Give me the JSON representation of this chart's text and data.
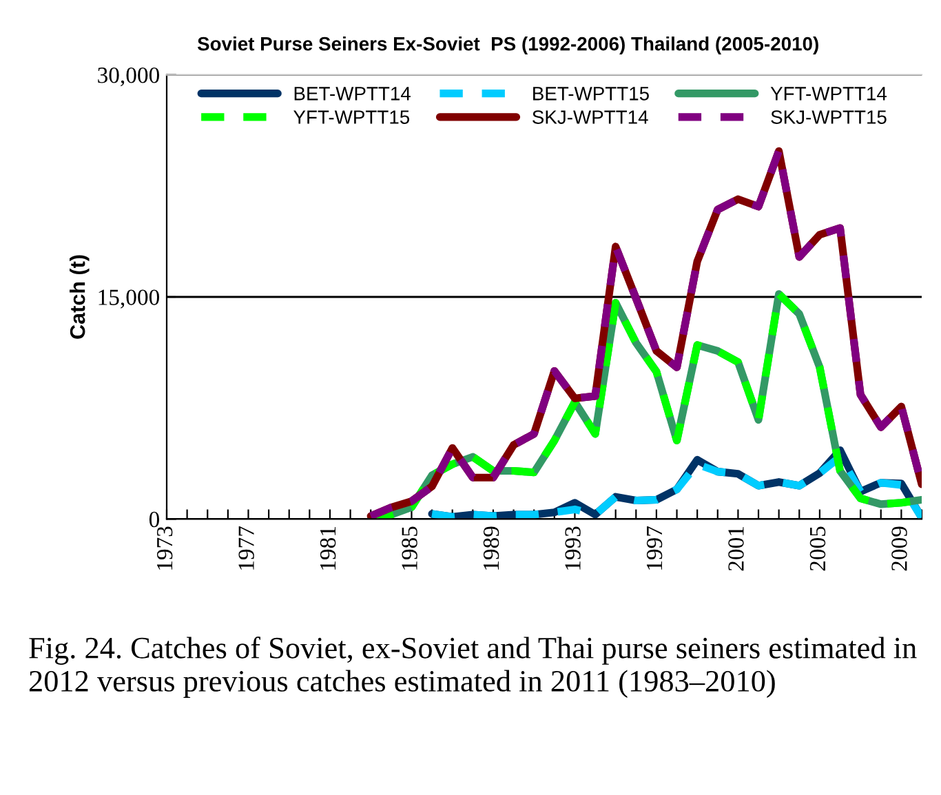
{
  "chart_data": {
    "type": "line",
    "title": "Soviet Purse Seiners Ex-Soviet  PS (1992-2006) Thailand (2005-2010)",
    "ylabel": "Catch (t)",
    "x": [
      1983,
      1984,
      1985,
      1986,
      1987,
      1988,
      1989,
      1990,
      1991,
      1992,
      1993,
      1994,
      1995,
      1996,
      1997,
      1998,
      1999,
      2000,
      2001,
      2002,
      2003,
      2004,
      2005,
      2006,
      2007,
      2008,
      2009,
      2010
    ],
    "series": [
      {
        "name": "BET-WPTT14",
        "color": "#003366",
        "values": [
          null,
          null,
          null,
          350,
          150,
          300,
          200,
          300,
          300,
          450,
          1100,
          300,
          1500,
          1250,
          1300,
          2000,
          4000,
          3200,
          3050,
          2250,
          2500,
          2250,
          3100,
          4650,
          1850,
          2450,
          2400,
          100
        ]
      },
      {
        "name": "BET-WPTT15",
        "color": "#00ccff",
        "line_style": "dashed",
        "values": [
          null,
          null,
          null,
          350,
          150,
          300,
          200,
          300,
          300,
          450,
          650,
          300,
          1500,
          1250,
          1300,
          2000,
          3700,
          3200,
          3050,
          2250,
          2500,
          2250,
          3100,
          4200,
          1850,
          2450,
          2300,
          100
        ]
      },
      {
        "name": "YFT-WPTT14",
        "color": "#339966",
        "values": [
          0,
          300,
          800,
          2950,
          3700,
          4200,
          3250,
          3250,
          3150,
          5300,
          7900,
          5750,
          14600,
          11900,
          9950,
          5300,
          11750,
          11350,
          10600,
          6700,
          15200,
          13850,
          10250,
          3250,
          1400,
          1000,
          1100,
          1300
        ]
      },
      {
        "name": "YFT-WPTT15",
        "color": "#00ff00",
        "line_style": "dashed",
        "values": [
          0,
          300,
          800,
          2950,
          3700,
          4200,
          3250,
          3250,
          3150,
          5300,
          7900,
          5750,
          14600,
          11900,
          9950,
          5300,
          11750,
          11350,
          10600,
          6700,
          15200,
          13850,
          10250,
          3250,
          1400,
          1000,
          1100,
          1300
        ]
      },
      {
        "name": "SKJ-WPTT14",
        "color": "#800000",
        "values": [
          200,
          780,
          1200,
          2200,
          4800,
          2800,
          2800,
          5000,
          5750,
          10000,
          8150,
          8300,
          18400,
          14900,
          11350,
          10250,
          17400,
          20900,
          21600,
          21100,
          24850,
          17700,
          19200,
          19650,
          8400,
          6200,
          7600,
          2350
        ]
      },
      {
        "name": "SKJ-WPTT15",
        "color": "#800080",
        "line_style": "dashed",
        "values": [
          200,
          780,
          1200,
          2200,
          4800,
          2800,
          2800,
          5000,
          5750,
          10000,
          8150,
          8300,
          18400,
          14900,
          11350,
          10250,
          17400,
          20900,
          21600,
          21100,
          24850,
          17700,
          19200,
          19650,
          8400,
          6200,
          7600,
          2350
        ]
      }
    ],
    "xlim": [
      1973,
      2010
    ],
    "xticks": [
      1973,
      {
        "value": 1974,
        "label": null
      },
      {
        "value": 1975,
        "label": null
      },
      {
        "value": 1976,
        "label": null
      },
      1977,
      {
        "value": 1978,
        "label": null
      },
      {
        "value": 1979,
        "label": null
      },
      {
        "value": 1980,
        "label": null
      },
      1981,
      {
        "value": 1982,
        "label": null
      },
      {
        "value": 1983,
        "label": null
      },
      {
        "value": 1984,
        "label": null
      },
      1985,
      {
        "value": 1986,
        "label": null
      },
      {
        "value": 1987,
        "label": null
      },
      {
        "value": 1988,
        "label": null
      },
      1989,
      {
        "value": 1990,
        "label": null
      },
      {
        "value": 1991,
        "label": null
      },
      {
        "value": 1992,
        "label": null
      },
      1993,
      {
        "value": 1994,
        "label": null
      },
      {
        "value": 1995,
        "label": null
      },
      {
        "value": 1996,
        "label": null
      },
      1997,
      {
        "value": 1998,
        "label": null
      },
      {
        "value": 1999,
        "label": null
      },
      {
        "value": 2000,
        "label": null
      },
      2001,
      {
        "value": 2002,
        "label": null
      },
      {
        "value": 2003,
        "label": null
      },
      {
        "value": 2004,
        "label": null
      },
      2005,
      {
        "value": 2006,
        "label": null
      },
      {
        "value": 2007,
        "label": null
      },
      {
        "value": 2008,
        "label": null
      },
      2009,
      {
        "value": 2010,
        "label": null
      }
    ],
    "ylim": [
      0,
      30000
    ],
    "yticks": [
      0,
      {
        "value": 15000,
        "label": "15,000"
      },
      {
        "value": 30000,
        "label": "30,000"
      }
    ],
    "grid": "y",
    "legend": "top",
    "marker": "none",
    "line_style": "solid",
    "annotations": [
      "Fig. 24. Catches of Soviet, ex-Soviet and Thai purse seiners estimated in 2012 versus previous catches estimated in 2011 (1983–2010)"
    ]
  }
}
